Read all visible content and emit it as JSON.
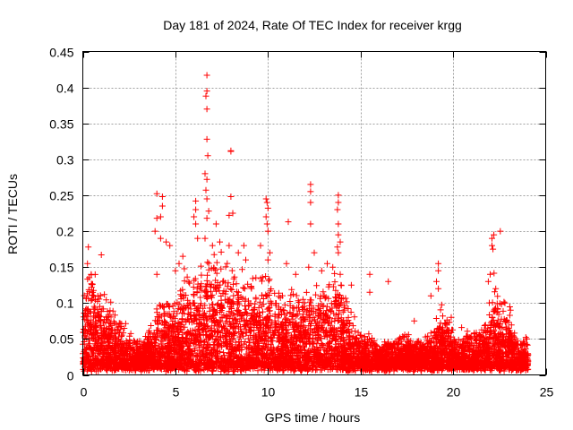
{
  "chart_data": {
    "type": "scatter",
    "title": "Day 181 of 2024, Rate Of TEC Index for receiver krgg",
    "xlabel": "GPS time / hours",
    "ylabel": "ROTI / TECUs",
    "xlim": [
      0,
      25
    ],
    "ylim": [
      0,
      0.45
    ],
    "xticks": [
      0,
      5,
      10,
      15,
      20,
      25
    ],
    "yticks": [
      0,
      0.05,
      0.1,
      0.15,
      0.2,
      0.25,
      0.3,
      0.35,
      0.4,
      0.45
    ],
    "xtick_labels": [
      "0",
      "5",
      "10",
      "15",
      "20",
      "25"
    ],
    "ytick_labels": [
      "0",
      "0.05",
      "0.1",
      "0.15",
      "0.2",
      "0.25",
      "0.3",
      "0.35",
      "0.4",
      "0.45"
    ],
    "grid": true,
    "marker": "+",
    "series_color": "#ff0000",
    "envelope": {
      "description_hours": [
        0,
        0.3,
        0.8,
        1.5,
        2.5,
        3.0,
        3.8,
        4.2,
        5.0,
        5.5,
        6.0,
        6.5,
        7.0,
        8.0,
        9.0,
        10.0,
        10.5,
        11.0,
        12.0,
        12.5,
        13.0,
        13.5,
        14.0,
        14.5,
        15.0,
        15.5,
        16.0,
        17.0,
        18.0,
        19.0,
        19.5,
        20.0,
        21.0,
        21.8,
        22.2,
        22.6,
        23.0,
        23.5,
        24.0
      ],
      "upper_roti": [
        0.08,
        0.13,
        0.11,
        0.08,
        0.05,
        0.03,
        0.06,
        0.1,
        0.09,
        0.13,
        0.12,
        0.14,
        0.15,
        0.13,
        0.12,
        0.13,
        0.1,
        0.11,
        0.1,
        0.12,
        0.11,
        0.12,
        0.12,
        0.07,
        0.05,
        0.04,
        0.03,
        0.04,
        0.04,
        0.05,
        0.09,
        0.04,
        0.05,
        0.06,
        0.12,
        0.09,
        0.08,
        0.03,
        0.04
      ],
      "baseline_roti": 0.012
    },
    "outliers": [
      {
        "x": 0.3,
        "y": 0.178
      },
      {
        "x": 0.25,
        "y": 0.155
      },
      {
        "x": 0.45,
        "y": 0.14
      },
      {
        "x": 1.0,
        "y": 0.167
      },
      {
        "x": 4.0,
        "y": 0.252
      },
      {
        "x": 4.0,
        "y": 0.218
      },
      {
        "x": 4.3,
        "y": 0.248
      },
      {
        "x": 4.3,
        "y": 0.235
      },
      {
        "x": 4.2,
        "y": 0.22
      },
      {
        "x": 3.9,
        "y": 0.2
      },
      {
        "x": 4.2,
        "y": 0.19
      },
      {
        "x": 4.5,
        "y": 0.185
      },
      {
        "x": 4.7,
        "y": 0.18
      },
      {
        "x": 4.0,
        "y": 0.14
      },
      {
        "x": 5.0,
        "y": 0.145
      },
      {
        "x": 5.4,
        "y": 0.165
      },
      {
        "x": 5.2,
        "y": 0.155
      },
      {
        "x": 6.1,
        "y": 0.242
      },
      {
        "x": 6.1,
        "y": 0.23
      },
      {
        "x": 6.0,
        "y": 0.22
      },
      {
        "x": 6.1,
        "y": 0.21
      },
      {
        "x": 6.2,
        "y": 0.19
      },
      {
        "x": 6.7,
        "y": 0.417
      },
      {
        "x": 6.7,
        "y": 0.395
      },
      {
        "x": 6.65,
        "y": 0.388
      },
      {
        "x": 6.7,
        "y": 0.37
      },
      {
        "x": 6.7,
        "y": 0.328
      },
      {
        "x": 6.75,
        "y": 0.305
      },
      {
        "x": 6.6,
        "y": 0.28
      },
      {
        "x": 6.7,
        "y": 0.272
      },
      {
        "x": 6.65,
        "y": 0.257
      },
      {
        "x": 6.7,
        "y": 0.245
      },
      {
        "x": 6.8,
        "y": 0.228
      },
      {
        "x": 6.7,
        "y": 0.218
      },
      {
        "x": 6.6,
        "y": 0.19
      },
      {
        "x": 7.2,
        "y": 0.21
      },
      {
        "x": 7.0,
        "y": 0.18
      },
      {
        "x": 7.4,
        "y": 0.185
      },
      {
        "x": 8.0,
        "y": 0.312
      },
      {
        "x": 8.0,
        "y": 0.311
      },
      {
        "x": 8.0,
        "y": 0.248
      },
      {
        "x": 7.9,
        "y": 0.222
      },
      {
        "x": 8.1,
        "y": 0.225
      },
      {
        "x": 7.9,
        "y": 0.18
      },
      {
        "x": 8.4,
        "y": 0.17
      },
      {
        "x": 8.7,
        "y": 0.18
      },
      {
        "x": 8.8,
        "y": 0.16
      },
      {
        "x": 9.9,
        "y": 0.245
      },
      {
        "x": 9.95,
        "y": 0.24
      },
      {
        "x": 10.0,
        "y": 0.232
      },
      {
        "x": 9.9,
        "y": 0.22
      },
      {
        "x": 9.95,
        "y": 0.21
      },
      {
        "x": 10.0,
        "y": 0.2
      },
      {
        "x": 10.1,
        "y": 0.17
      },
      {
        "x": 9.6,
        "y": 0.18
      },
      {
        "x": 10.0,
        "y": 0.16
      },
      {
        "x": 11.1,
        "y": 0.213
      },
      {
        "x": 11.0,
        "y": 0.155
      },
      {
        "x": 11.5,
        "y": 0.14
      },
      {
        "x": 12.3,
        "y": 0.265
      },
      {
        "x": 12.3,
        "y": 0.255
      },
      {
        "x": 12.3,
        "y": 0.24
      },
      {
        "x": 12.3,
        "y": 0.21
      },
      {
        "x": 12.5,
        "y": 0.17
      },
      {
        "x": 12.2,
        "y": 0.15
      },
      {
        "x": 12.9,
        "y": 0.145
      },
      {
        "x": 13.2,
        "y": 0.155
      },
      {
        "x": 13.8,
        "y": 0.25
      },
      {
        "x": 13.8,
        "y": 0.24
      },
      {
        "x": 13.75,
        "y": 0.23
      },
      {
        "x": 13.8,
        "y": 0.21
      },
      {
        "x": 13.8,
        "y": 0.195
      },
      {
        "x": 13.9,
        "y": 0.185
      },
      {
        "x": 13.75,
        "y": 0.178
      },
      {
        "x": 13.8,
        "y": 0.17
      },
      {
        "x": 13.5,
        "y": 0.15
      },
      {
        "x": 13.9,
        "y": 0.14
      },
      {
        "x": 14.5,
        "y": 0.125
      },
      {
        "x": 15.5,
        "y": 0.14
      },
      {
        "x": 15.5,
        "y": 0.115
      },
      {
        "x": 16.5,
        "y": 0.13
      },
      {
        "x": 19.2,
        "y": 0.155
      },
      {
        "x": 19.2,
        "y": 0.145
      },
      {
        "x": 19.1,
        "y": 0.13
      },
      {
        "x": 19.2,
        "y": 0.12
      },
      {
        "x": 18.8,
        "y": 0.11
      },
      {
        "x": 19.9,
        "y": 0.08
      },
      {
        "x": 17.9,
        "y": 0.075
      },
      {
        "x": 22.1,
        "y": 0.19
      },
      {
        "x": 22.2,
        "y": 0.195
      },
      {
        "x": 22.1,
        "y": 0.18
      },
      {
        "x": 22.15,
        "y": 0.175
      },
      {
        "x": 22.55,
        "y": 0.2
      },
      {
        "x": 22.0,
        "y": 0.14
      },
      {
        "x": 21.9,
        "y": 0.13
      },
      {
        "x": 22.3,
        "y": 0.12
      },
      {
        "x": 22.8,
        "y": 0.1
      },
      {
        "x": 23.1,
        "y": 0.09
      }
    ]
  }
}
